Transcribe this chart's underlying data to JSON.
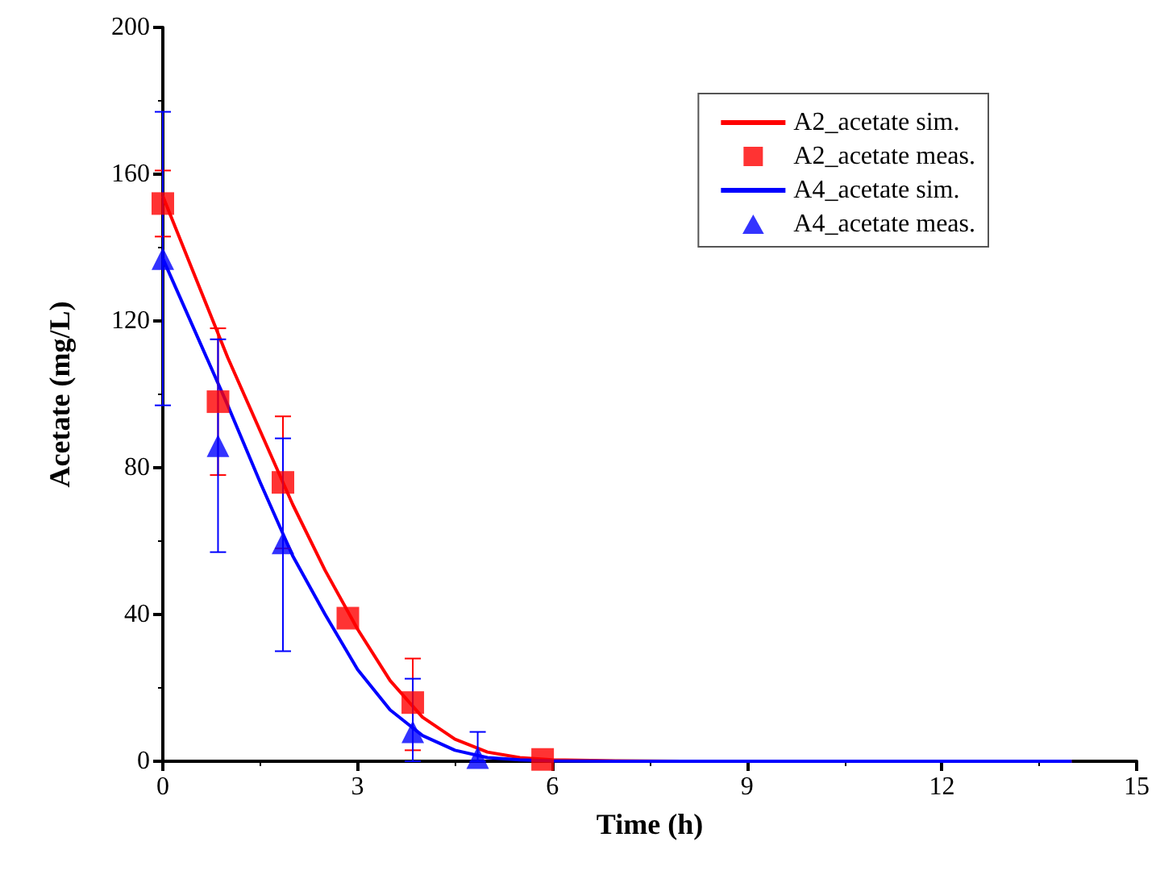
{
  "chart_data": {
    "type": "line",
    "xlabel": "Time (h)",
    "ylabel": "Acetate (mg/L)",
    "xlim": [
      0,
      15
    ],
    "xticks": [
      0,
      3,
      6,
      9,
      12,
      15
    ],
    "ylim": [
      0,
      200
    ],
    "yticks": [
      0,
      40,
      80,
      120,
      160,
      200
    ],
    "grid": false,
    "legend": "top right",
    "series": [
      {
        "name": "A2_acetate sim.",
        "type": "line",
        "marker": "none",
        "color": "#ff0000",
        "x": [
          0,
          0.5,
          1,
          1.5,
          2,
          2.5,
          3,
          3.5,
          4,
          4.5,
          5,
          5.5,
          6,
          7,
          8,
          14
        ],
        "values": [
          154,
          132,
          110,
          90,
          70,
          52,
          36,
          22,
          12,
          6,
          2.5,
          1,
          0.4,
          0.1,
          0,
          0
        ]
      },
      {
        "name": "A2_acetate meas.",
        "type": "scatter",
        "marker": "square",
        "color": "#ff0000",
        "x": [
          0,
          0.85,
          1.85,
          2.85,
          3.85,
          5.85
        ],
        "values": [
          152,
          98,
          76,
          39,
          16,
          0.5
        ],
        "errors": [
          [
            143,
            161
          ],
          [
            78,
            118
          ],
          [
            58,
            94
          ],
          null,
          [
            3,
            28
          ],
          null
        ]
      },
      {
        "name": "A4_acetate sim.",
        "type": "line",
        "marker": "none",
        "color": "#0000ff",
        "x": [
          0,
          0.5,
          1,
          1.5,
          2,
          2.5,
          3,
          3.5,
          4,
          4.5,
          5,
          5.5,
          6,
          7,
          14
        ],
        "values": [
          137,
          117,
          97,
          76,
          56,
          40,
          25,
          14,
          7,
          3,
          1,
          0.4,
          0.1,
          0,
          0
        ]
      },
      {
        "name": "A4_acetate meas.",
        "type": "scatter",
        "marker": "triangle",
        "color": "#0000ff",
        "x": [
          0,
          0.85,
          1.85,
          3.85,
          4.85
        ],
        "values": [
          137,
          86,
          59.5,
          8,
          1
        ],
        "errors": [
          [
            97,
            177
          ],
          [
            57,
            115
          ],
          [
            30,
            88
          ],
          [
            0,
            22.5
          ],
          [
            0,
            8
          ]
        ]
      }
    ]
  }
}
